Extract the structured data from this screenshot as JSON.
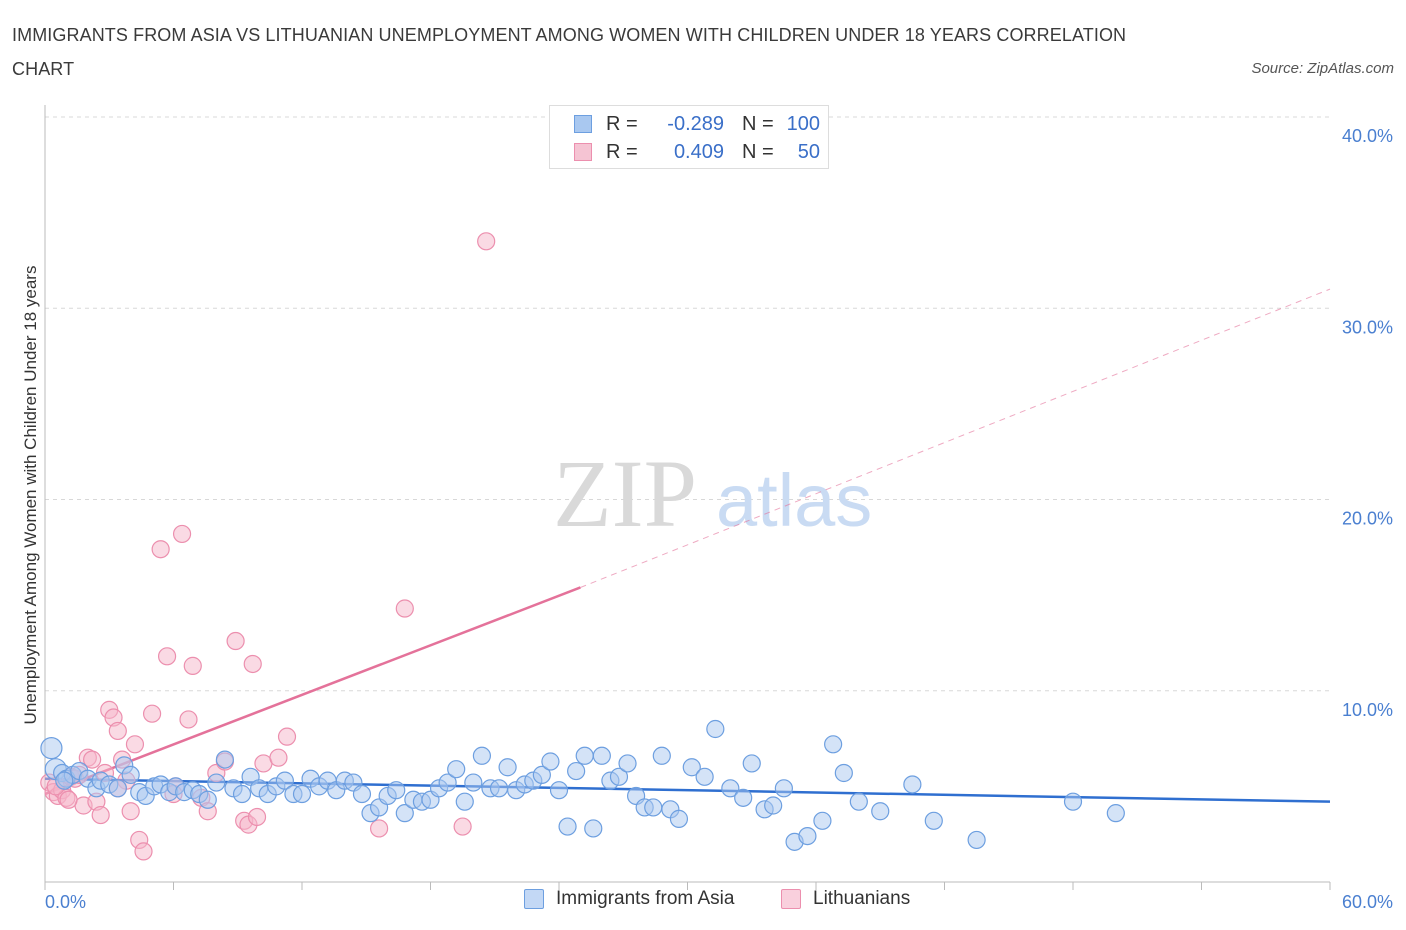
{
  "title": "IMMIGRANTS FROM ASIA VS LITHUANIAN UNEMPLOYMENT AMONG WOMEN WITH CHILDREN UNDER 18 YEARS CORRELATION CHART",
  "source": "Source: ZipAtlas.com",
  "watermark": {
    "zip": "ZIP",
    "atlas": "atlas"
  },
  "legend": {
    "series1": {
      "r_label": "R =",
      "r_value": "-0.289",
      "n_label": "N =",
      "n_value": "100"
    },
    "series2": {
      "r_label": "R =",
      "r_value": "0.409",
      "n_label": "N =",
      "n_value": "50"
    }
  },
  "colors": {
    "blue_fill": "#a9c8f0",
    "blue_stroke": "#6d9fe0",
    "blue_line": "#2f6fd0",
    "pink_fill": "#f5b6ca",
    "pink_stroke": "#ec8fae",
    "pink_line": "#e4729a",
    "grid": "#d8d8d8",
    "tick_text": "#4a7fd0"
  },
  "chart_data": {
    "type": "scatter",
    "title": "IMMIGRANTS FROM ASIA VS LITHUANIAN UNEMPLOYMENT AMONG WOMEN WITH CHILDREN UNDER 18 YEARS CORRELATION CHART",
    "xlabel": "",
    "ylabel": "Unemployment Among Women with Children Under 18 years",
    "xlim": [
      0,
      60
    ],
    "ylim": [
      0,
      40
    ],
    "x_tick_labels": [
      "0.0%",
      "60.0%"
    ],
    "y_ticks": [
      10,
      20,
      30,
      40
    ],
    "y_tick_labels": [
      "10.0%",
      "20.0%",
      "30.0%",
      "40.0%"
    ],
    "grid": true,
    "series": [
      {
        "name": "Immigrants from Asia",
        "R": -0.289,
        "N": 100,
        "trend": {
          "x0": 0,
          "y0": 5.4,
          "x1": 60,
          "y1": 4.2,
          "dashed_from": null
        },
        "points": [
          [
            0.3,
            7.0
          ],
          [
            0.5,
            5.9
          ],
          [
            0.8,
            5.7
          ],
          [
            1.0,
            5.4
          ],
          [
            1.3,
            5.6
          ],
          [
            1.6,
            5.8
          ],
          [
            2.0,
            5.4
          ],
          [
            2.4,
            4.9
          ],
          [
            2.6,
            5.3
          ],
          [
            3.0,
            5.1
          ],
          [
            3.4,
            4.9
          ],
          [
            3.7,
            6.1
          ],
          [
            4.0,
            5.6
          ],
          [
            4.4,
            4.7
          ],
          [
            4.7,
            4.5
          ],
          [
            5.1,
            5.0
          ],
          [
            5.4,
            5.1
          ],
          [
            5.8,
            4.7
          ],
          [
            6.1,
            5.0
          ],
          [
            6.5,
            4.7
          ],
          [
            6.9,
            4.8
          ],
          [
            7.2,
            4.6
          ],
          [
            7.6,
            4.3
          ],
          [
            8.0,
            5.2
          ],
          [
            8.4,
            6.4
          ],
          [
            8.8,
            4.9
          ],
          [
            9.2,
            4.6
          ],
          [
            9.6,
            5.5
          ],
          [
            10.0,
            4.9
          ],
          [
            10.4,
            4.6
          ],
          [
            10.8,
            5.0
          ],
          [
            11.2,
            5.3
          ],
          [
            11.6,
            4.6
          ],
          [
            12.0,
            4.6
          ],
          [
            12.4,
            5.4
          ],
          [
            12.8,
            5.0
          ],
          [
            13.2,
            5.3
          ],
          [
            13.6,
            4.8
          ],
          [
            14.0,
            5.3
          ],
          [
            14.4,
            5.2
          ],
          [
            14.8,
            4.6
          ],
          [
            15.2,
            3.6
          ],
          [
            15.6,
            3.9
          ],
          [
            16.0,
            4.5
          ],
          [
            16.4,
            4.8
          ],
          [
            16.8,
            3.6
          ],
          [
            17.2,
            4.3
          ],
          [
            17.6,
            4.2
          ],
          [
            18.0,
            4.3
          ],
          [
            18.4,
            4.9
          ],
          [
            18.8,
            5.2
          ],
          [
            19.2,
            5.9
          ],
          [
            19.6,
            4.2
          ],
          [
            20.0,
            5.2
          ],
          [
            20.4,
            6.6
          ],
          [
            20.8,
            4.9
          ],
          [
            21.2,
            4.9
          ],
          [
            21.6,
            6.0
          ],
          [
            22.0,
            4.8
          ],
          [
            22.4,
            5.1
          ],
          [
            22.8,
            5.3
          ],
          [
            23.2,
            5.6
          ],
          [
            23.6,
            6.3
          ],
          [
            24.0,
            4.8
          ],
          [
            24.4,
            2.9
          ],
          [
            24.8,
            5.8
          ],
          [
            25.2,
            6.6
          ],
          [
            25.6,
            2.8
          ],
          [
            26.0,
            6.6
          ],
          [
            26.4,
            5.3
          ],
          [
            26.8,
            5.5
          ],
          [
            27.2,
            6.2
          ],
          [
            27.6,
            4.5
          ],
          [
            28.0,
            3.9
          ],
          [
            28.4,
            3.9
          ],
          [
            28.8,
            6.6
          ],
          [
            29.2,
            3.8
          ],
          [
            29.6,
            3.3
          ],
          [
            30.2,
            6.0
          ],
          [
            30.8,
            5.5
          ],
          [
            31.3,
            8.0
          ],
          [
            32.0,
            4.9
          ],
          [
            32.6,
            4.4
          ],
          [
            33.0,
            6.2
          ],
          [
            33.6,
            3.8
          ],
          [
            34.0,
            4.0
          ],
          [
            34.5,
            4.9
          ],
          [
            35.0,
            2.1
          ],
          [
            35.6,
            2.4
          ],
          [
            36.3,
            3.2
          ],
          [
            36.8,
            7.2
          ],
          [
            37.3,
            5.7
          ],
          [
            38.0,
            4.2
          ],
          [
            39.0,
            3.7
          ],
          [
            40.5,
            5.1
          ],
          [
            41.5,
            3.2
          ],
          [
            43.5,
            2.2
          ],
          [
            48.0,
            4.2
          ],
          [
            50.0,
            3.6
          ],
          [
            0.9,
            5.3
          ]
        ]
      },
      {
        "name": "Lithuanians",
        "R": 0.409,
        "N": 50,
        "trend": {
          "x0": 0,
          "y0": 4.6,
          "x1": 25,
          "y1": 15.4,
          "dashed_to_x": 60,
          "dashed_to_y": 31.0
        },
        "points": [
          [
            0.2,
            5.2
          ],
          [
            0.4,
            4.7
          ],
          [
            0.6,
            4.5
          ],
          [
            0.8,
            4.8
          ],
          [
            1.0,
            4.4
          ],
          [
            1.2,
            5.5
          ],
          [
            1.4,
            5.4
          ],
          [
            1.6,
            5.6
          ],
          [
            1.8,
            4.0
          ],
          [
            2.0,
            6.5
          ],
          [
            2.2,
            6.4
          ],
          [
            2.4,
            4.2
          ],
          [
            2.6,
            3.5
          ],
          [
            3.0,
            9.0
          ],
          [
            3.2,
            8.6
          ],
          [
            3.4,
            7.9
          ],
          [
            3.6,
            6.4
          ],
          [
            3.8,
            5.3
          ],
          [
            4.0,
            3.7
          ],
          [
            4.2,
            7.2
          ],
          [
            4.4,
            2.2
          ],
          [
            4.6,
            1.6
          ],
          [
            5.0,
            8.8
          ],
          [
            5.4,
            17.4
          ],
          [
            5.7,
            11.8
          ],
          [
            6.1,
            5.0
          ],
          [
            6.4,
            18.2
          ],
          [
            6.7,
            8.5
          ],
          [
            6.9,
            11.3
          ],
          [
            7.3,
            4.4
          ],
          [
            7.6,
            3.7
          ],
          [
            8.0,
            5.7
          ],
          [
            8.4,
            6.3
          ],
          [
            8.9,
            12.6
          ],
          [
            9.3,
            3.2
          ],
          [
            9.5,
            3.0
          ],
          [
            9.7,
            11.4
          ],
          [
            9.9,
            3.4
          ],
          [
            10.2,
            6.2
          ],
          [
            10.9,
            6.5
          ],
          [
            11.3,
            7.6
          ],
          [
            15.6,
            2.8
          ],
          [
            16.8,
            14.3
          ],
          [
            19.5,
            2.9
          ],
          [
            20.6,
            33.5
          ],
          [
            3.4,
            4.9
          ],
          [
            1.1,
            4.3
          ],
          [
            0.5,
            5.0
          ],
          [
            2.8,
            5.7
          ],
          [
            6.0,
            4.6
          ]
        ]
      }
    ]
  },
  "bottom_legend": {
    "item1": "Immigrants from Asia",
    "item2": "Lithuanians"
  }
}
